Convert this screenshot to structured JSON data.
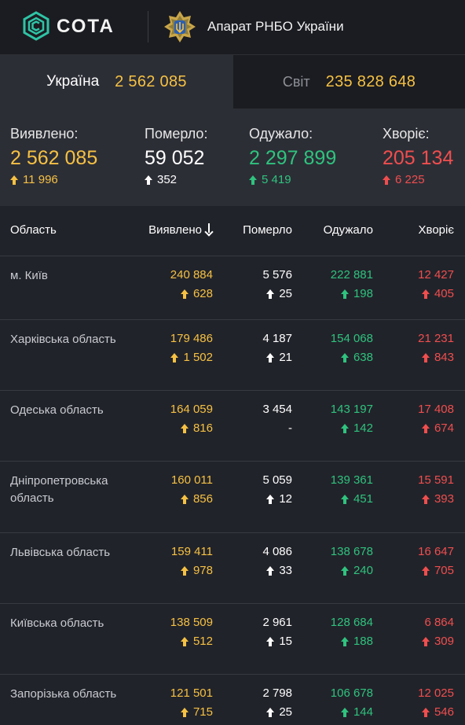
{
  "header": {
    "logo_icon": "sota-logo-icon",
    "brand": "СОТА",
    "emblem_icon": "rnbo-emblem-icon",
    "org": "Апарат РНБО України"
  },
  "tabs": [
    {
      "label": "Україна",
      "value": "2 562 085",
      "active": true
    },
    {
      "label": "Світ",
      "value": "235 828 648",
      "active": false
    }
  ],
  "summary": {
    "confirmed": {
      "label": "Виявлено:",
      "value": "2 562 085",
      "delta": "11 996"
    },
    "deaths": {
      "label": "Померло:",
      "value": "59 052",
      "delta": "352"
    },
    "recovered": {
      "label": "Одужало:",
      "value": "2 297 899",
      "delta": "5 419"
    },
    "sick": {
      "label": "Хворіє:",
      "value": "205 134",
      "delta": "6 225"
    }
  },
  "colors": {
    "confirmed": "#f6c143",
    "deaths": "#ffffff",
    "recovered": "#2fc37e",
    "sick": "#f04e4e"
  },
  "table": {
    "headers": {
      "region": "Область",
      "confirmed": "Виявлено",
      "deaths": "Померло",
      "recovered": "Одужало",
      "sick": "Хворіє"
    },
    "sort_icon": "arrow-down-icon",
    "rows": [
      {
        "name": "м. Київ",
        "confirmed": "240 884",
        "confirmed_d": "628",
        "deaths": "5 576",
        "deaths_d": "25",
        "recovered": "222 881",
        "recovered_d": "198",
        "sick": "12 427",
        "sick_d": "405"
      },
      {
        "name": "Харківська область",
        "confirmed": "179 486",
        "confirmed_d": "1 502",
        "deaths": "4 187",
        "deaths_d": "21",
        "recovered": "154 068",
        "recovered_d": "638",
        "sick": "21 231",
        "sick_d": "843"
      },
      {
        "name": "Одеська область",
        "confirmed": "164 059",
        "confirmed_d": "816",
        "deaths": "3 454",
        "deaths_d": "-",
        "recovered": "143 197",
        "recovered_d": "142",
        "sick": "17 408",
        "sick_d": "674"
      },
      {
        "name": "Дніпропетровська область",
        "confirmed": "160 011",
        "confirmed_d": "856",
        "deaths": "5 059",
        "deaths_d": "12",
        "recovered": "139 361",
        "recovered_d": "451",
        "sick": "15 591",
        "sick_d": "393"
      },
      {
        "name": "Львівська область",
        "confirmed": "159 411",
        "confirmed_d": "978",
        "deaths": "4 086",
        "deaths_d": "33",
        "recovered": "138 678",
        "recovered_d": "240",
        "sick": "16 647",
        "sick_d": "705"
      },
      {
        "name": "Київська область",
        "confirmed": "138 509",
        "confirmed_d": "512",
        "deaths": "2 961",
        "deaths_d": "15",
        "recovered": "128 684",
        "recovered_d": "188",
        "sick": "6 864",
        "sick_d": "309"
      },
      {
        "name": "Запорізька область",
        "confirmed": "121 501",
        "confirmed_d": "715",
        "deaths": "2 798",
        "deaths_d": "25",
        "recovered": "106 678",
        "recovered_d": "144",
        "sick": "12 025",
        "sick_d": "546"
      }
    ]
  }
}
